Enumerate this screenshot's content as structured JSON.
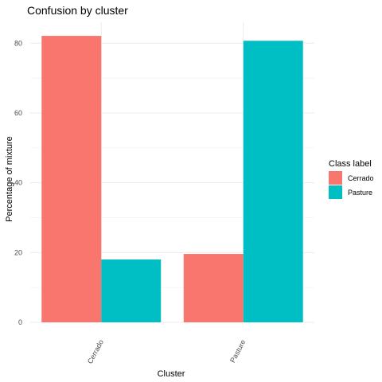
{
  "chart_data": {
    "type": "bar",
    "title": "Confusion by cluster",
    "xlabel": "Cluster",
    "ylabel": "Percentage of mixture",
    "categories": [
      "Cerrado",
      "Pasture"
    ],
    "series": [
      {
        "name": "Cerrado",
        "color": "#F8766D",
        "values": [
          82.1,
          19.6
        ]
      },
      {
        "name": "Pasture",
        "color": "#00BFC4",
        "values": [
          18.0,
          80.7
        ]
      }
    ],
    "y_ticks": [
      0,
      20,
      40,
      60,
      80
    ],
    "ylim": [
      0,
      86
    ],
    "grid": true,
    "x_tick_rotation": "vertical (rotated ~-60°)",
    "legend": {
      "title": "Class label",
      "position": "right"
    }
  }
}
